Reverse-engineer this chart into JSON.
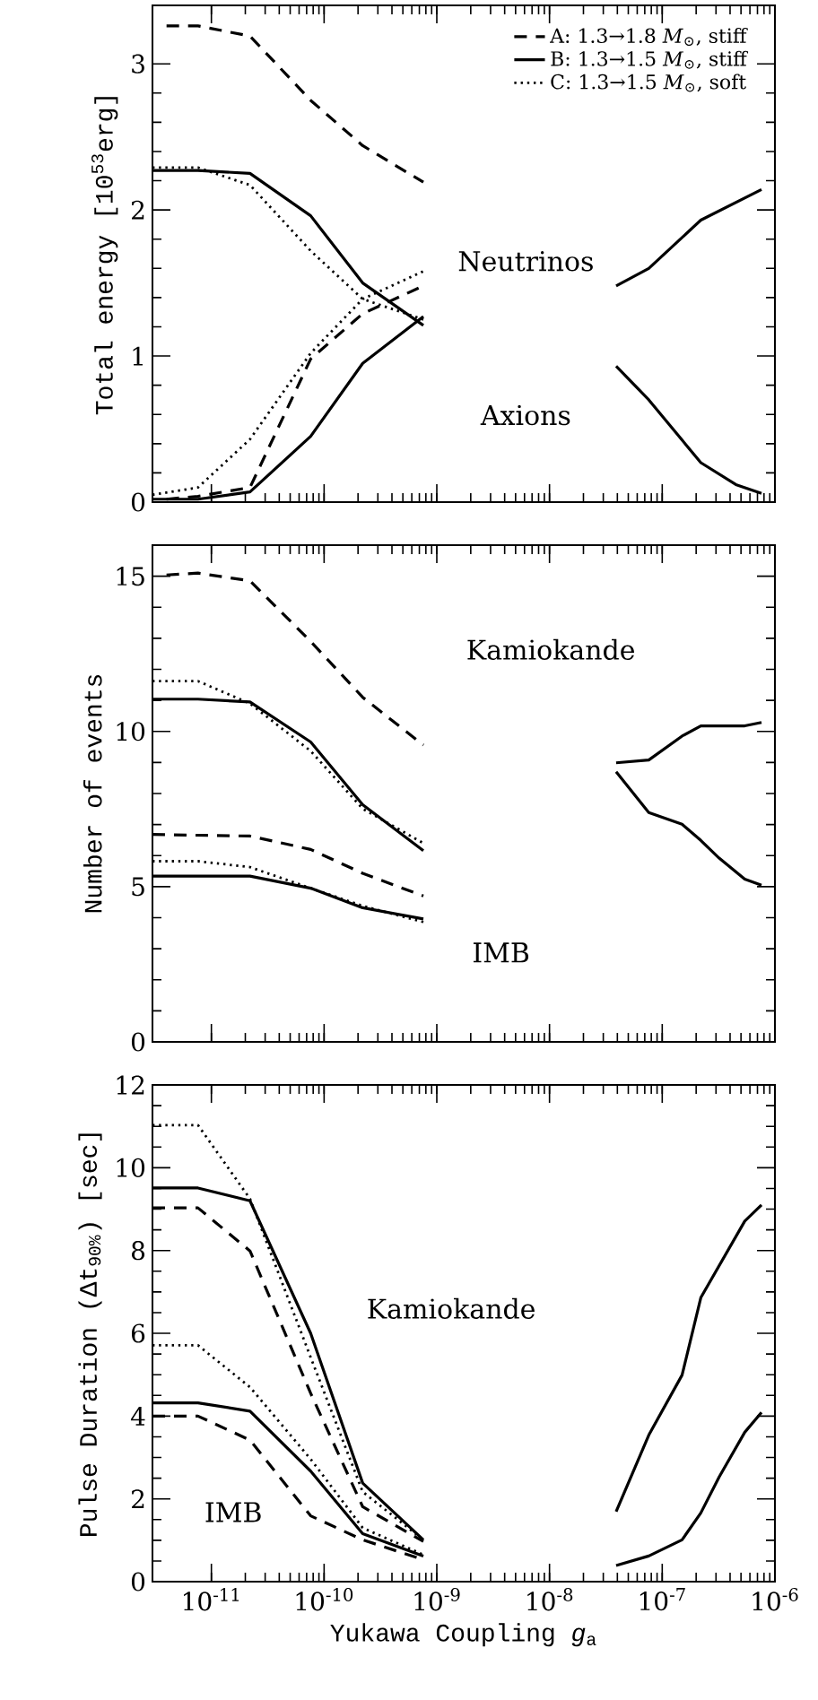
{
  "chart_data": [
    {
      "type": "line",
      "ylabel": "Total energy [10$^{53}$erg]",
      "log": "x",
      "xlim": [
        3e-12,
        1e-06
      ],
      "ylim": [
        0,
        3.4
      ],
      "yticks": [
        0,
        1,
        2,
        3
      ],
      "tick_labels": "y",
      "legend": "top right",
      "xticks": [
        {
          "value": 1e-11,
          "label": null
        },
        {
          "value": 1e-10,
          "label": null
        },
        {
          "value": 1e-09,
          "label": null
        },
        {
          "value": 1e-08,
          "label": null
        },
        {
          "value": 1e-07,
          "label": null
        },
        {
          "value": 1e-06,
          "label": null
        }
      ],
      "annotations": [
        "Neutrinos",
        "Axions"
      ],
      "series": [
        {
          "name": "A: 1.3→1.8 *M*$_{⊙}$, stiff",
          "color": "#000000",
          "line_style": "dashed",
          "x": [
            4e-12,
            7.6e-12,
            2.2e-11,
            7.6e-11,
            2.2e-10,
            7.6e-10
          ],
          "values": [
            3.26,
            3.26,
            3.19,
            2.75,
            2.44,
            2.19
          ]
        },
        {
          "name": "B: 1.3→1.5 *M*$_{⊙}$, stiff",
          "color": "#000000",
          "line_style": "solid",
          "x": [
            3e-12,
            7.6e-12,
            2.2e-11,
            7.6e-11,
            2.2e-10,
            7.6e-10
          ],
          "values": [
            2.27,
            2.27,
            2.25,
            1.96,
            1.5,
            1.21
          ]
        },
        {
          "name": "C: 1.3→1.5 *M*$_{⊙}$, soft",
          "color": "#000000",
          "line_style": "dotted",
          "x": [
            3e-12,
            7.6e-12,
            2.2e-11,
            7.6e-11,
            2.2e-10,
            7.6e-10
          ],
          "values": [
            2.29,
            2.29,
            2.17,
            1.72,
            1.39,
            1.25
          ]
        },
        {
          "color": "#000000",
          "line_style": "dashed",
          "x": [
            4e-12,
            7.6e-12,
            2.2e-11,
            7.6e-11,
            2.2e-10,
            7.6e-10
          ],
          "values": [
            0.02,
            0.04,
            0.1,
            0.98,
            1.29,
            1.48
          ]
        },
        {
          "color": "#000000",
          "line_style": "solid",
          "x": [
            3e-12,
            7.6e-12,
            2.2e-11,
            7.6e-11,
            2.2e-10,
            7.6e-10
          ],
          "values": [
            0.02,
            0.02,
            0.07,
            0.45,
            0.95,
            1.27
          ]
        },
        {
          "color": "#000000",
          "line_style": "dotted",
          "x": [
            3e-12,
            7.6e-12,
            2.2e-11,
            7.6e-11,
            2.2e-10,
            7.6e-10
          ],
          "values": [
            0.05,
            0.1,
            0.43,
            1.02,
            1.39,
            1.58
          ]
        },
        {
          "color": "#000000",
          "line_style": "solid",
          "x": [
            3.9e-08,
            7.6e-08,
            2.2e-07,
            7.6e-07
          ],
          "values": [
            1.48,
            1.6,
            1.93,
            2.14
          ]
        },
        {
          "color": "#000000",
          "line_style": "solid",
          "x": [
            3.9e-08,
            7.6e-08,
            2.2e-07,
            4.5e-07,
            7.6e-07
          ],
          "values": [
            0.93,
            0.7,
            0.27,
            0.12,
            0.06
          ]
        }
      ]
    },
    {
      "type": "line",
      "ylabel": "Number of events",
      "log": "x",
      "xlim": [
        3e-12,
        1e-06
      ],
      "ylim": [
        0,
        16
      ],
      "yticks": [
        0,
        5,
        10,
        15
      ],
      "tick_labels": "y",
      "xticks": [
        {
          "value": 1e-11,
          "label": null
        },
        {
          "value": 1e-10,
          "label": null
        },
        {
          "value": 1e-09,
          "label": null
        },
        {
          "value": 1e-08,
          "label": null
        },
        {
          "value": 1e-07,
          "label": null
        },
        {
          "value": 1e-06,
          "label": null
        }
      ],
      "annotations": [
        "Kamiokande",
        "IMB"
      ],
      "series": [
        {
          "color": "#000000",
          "line_style": "dashed",
          "x": [
            4e-12,
            7.6e-12,
            2.2e-11,
            7.6e-11,
            2.2e-10,
            7.6e-10
          ],
          "values": [
            15.04,
            15.1,
            14.85,
            12.9,
            11.1,
            9.56
          ]
        },
        {
          "color": "#000000",
          "line_style": "solid",
          "x": [
            3e-12,
            7.6e-12,
            2.2e-11,
            7.6e-11,
            2.2e-10,
            7.6e-10
          ],
          "values": [
            11.04,
            11.04,
            10.95,
            9.66,
            7.64,
            6.16
          ]
        },
        {
          "color": "#000000",
          "line_style": "dotted",
          "x": [
            3e-12,
            7.6e-12,
            2.2e-11,
            7.6e-11,
            2.2e-10,
            7.6e-10
          ],
          "values": [
            11.62,
            11.62,
            10.9,
            9.37,
            7.51,
            6.4
          ]
        },
        {
          "color": "#000000",
          "line_style": "dashed",
          "x": [
            3e-12,
            2.2e-11,
            7.6e-11,
            2.2e-10,
            7.6e-10
          ],
          "values": [
            6.68,
            6.63,
            6.2,
            5.43,
            4.7
          ]
        },
        {
          "color": "#000000",
          "line_style": "solid",
          "x": [
            3e-12,
            2.2e-11,
            7.6e-11,
            2.2e-10,
            7.6e-10
          ],
          "values": [
            5.34,
            5.34,
            4.95,
            4.32,
            3.96
          ]
        },
        {
          "color": "#000000",
          "line_style": "dotted",
          "x": [
            3e-12,
            7.6e-12,
            2.2e-11,
            7.6e-11,
            2.2e-10,
            7.6e-10
          ],
          "values": [
            5.82,
            5.82,
            5.63,
            4.95,
            4.38,
            3.86
          ]
        },
        {
          "color": "#000000",
          "line_style": "solid",
          "x": [
            3.9e-08,
            7.6e-08,
            1.5e-07,
            2.2e-07,
            5.4e-07,
            7.6e-07
          ],
          "values": [
            8.99,
            9.08,
            9.85,
            10.18,
            10.18,
            10.29
          ]
        },
        {
          "color": "#000000",
          "line_style": "solid",
          "x": [
            3.9e-08,
            7.6e-08,
            1.5e-07,
            2.2e-07,
            3.2e-07,
            5.4e-07,
            7.6e-07
          ],
          "values": [
            8.7,
            7.39,
            7.01,
            6.49,
            5.92,
            5.24,
            5.05
          ]
        }
      ]
    },
    {
      "type": "line",
      "ylabel": "Pulse Duration (Δt$_{90%}$) [sec]",
      "xlabel": "Yukawa Coupling *g*$_{a}$",
      "log": "x",
      "xlim": [
        3e-12,
        1e-06
      ],
      "ylim": [
        0,
        12
      ],
      "yticks": [
        0,
        2,
        4,
        6,
        8,
        10,
        12
      ],
      "xticks": [
        {
          "value": 1e-11,
          "label": "10$^{-11}$"
        },
        {
          "value": 1e-10,
          "label": "10$^{-10}$"
        },
        {
          "value": 1e-09,
          "label": "10$^{-9}$"
        },
        {
          "value": 1e-08,
          "label": "10$^{-8}$"
        },
        {
          "value": 1e-07,
          "label": "10$^{-7}$"
        },
        {
          "value": 1e-06,
          "label": "10$^{-6}$"
        }
      ],
      "annotations": [
        "Kamiokande",
        "IMB"
      ],
      "series": [
        {
          "color": "#000000",
          "line_style": "dotted",
          "x": [
            3e-12,
            7.6e-12,
            2.2e-11,
            7.6e-11,
            2.2e-10,
            7.6e-10
          ],
          "values": [
            11.03,
            11.03,
            9.25,
            5.42,
            2.17,
            1.01
          ]
        },
        {
          "color": "#000000",
          "line_style": "solid",
          "x": [
            3e-12,
            7.6e-12,
            2.2e-11,
            7.6e-11,
            2.2e-10,
            7.6e-10
          ],
          "values": [
            9.51,
            9.51,
            9.2,
            6.0,
            2.38,
            1.01
          ]
        },
        {
          "color": "#000000",
          "line_style": "dashed",
          "x": [
            3e-12,
            7.6e-12,
            2.2e-11,
            7.6e-11,
            2.2e-10,
            7.6e-10
          ],
          "values": [
            9.03,
            9.03,
            7.99,
            4.55,
            1.81,
            0.97
          ]
        },
        {
          "color": "#000000",
          "line_style": "dotted",
          "x": [
            3e-12,
            7.6e-12,
            2.2e-11,
            7.6e-11,
            2.2e-10,
            7.6e-10
          ],
          "values": [
            5.71,
            5.71,
            4.7,
            2.96,
            1.3,
            0.65
          ]
        },
        {
          "color": "#000000",
          "line_style": "solid",
          "x": [
            3e-12,
            7.6e-12,
            2.2e-11,
            7.6e-11,
            2.2e-10,
            7.6e-10
          ],
          "values": [
            4.32,
            4.32,
            4.12,
            2.67,
            1.16,
            0.62
          ]
        },
        {
          "color": "#000000",
          "line_style": "dashed",
          "x": [
            3e-12,
            7.6e-12,
            2.2e-11,
            7.6e-11,
            2.2e-10,
            7.6e-10
          ],
          "values": [
            4.0,
            4.0,
            3.42,
            1.59,
            1.01,
            0.53
          ]
        },
        {
          "color": "#000000",
          "line_style": "solid",
          "x": [
            3.9e-08,
            7.6e-08,
            1.5e-07,
            2.2e-07,
            5.4e-07,
            7.6e-07
          ],
          "values": [
            1.69,
            3.54,
            4.99,
            6.86,
            8.71,
            9.1
          ]
        },
        {
          "color": "#000000",
          "line_style": "solid",
          "x": [
            3.9e-08,
            7.6e-08,
            1.5e-07,
            2.2e-07,
            3.2e-07,
            5.4e-07,
            7.6e-07
          ],
          "values": [
            0.39,
            0.62,
            1.01,
            1.66,
            2.53,
            3.61,
            4.09
          ]
        }
      ]
    }
  ]
}
